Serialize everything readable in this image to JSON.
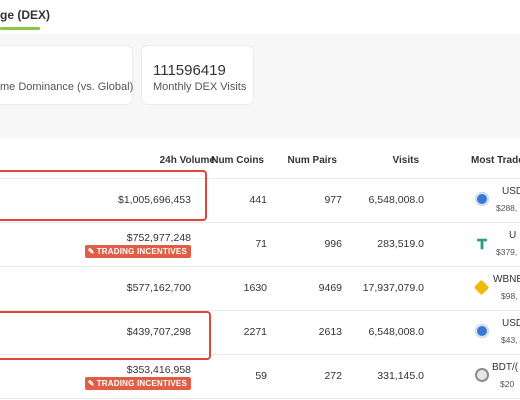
{
  "tab": {
    "label": "ge (DEX)"
  },
  "cards": [
    {
      "label": "me Dominance (vs. Global)"
    },
    {
      "value": "111596419",
      "label": "Monthly DEX Visits"
    }
  ],
  "table": {
    "headers": {
      "volume": "24h Volume",
      "coins": "Num Coins",
      "pairs": "Num Pairs",
      "visits": "Visits",
      "most": "Most Trade"
    },
    "rows": [
      {
        "volume": "$1,005,696,453",
        "coins": "441",
        "pairs": "977",
        "visits": "6,548,008.0",
        "coin_icon": "usdc-icon",
        "most_name": "USD",
        "most_sub": "$288,"
      },
      {
        "volume": "$752,977,248",
        "badge": "TRADING INCENTIVES",
        "coins": "71",
        "pairs": "996",
        "visits": "283,519.0",
        "coin_icon": "usdt-icon",
        "most_name": "U",
        "most_sub": "$379,"
      },
      {
        "volume": "$577,162,700",
        "coins": "1630",
        "pairs": "9469",
        "visits": "17,937,079.0",
        "coin_icon": "bnb-icon",
        "most_name": "WBNE",
        "most_sub": "$98,"
      },
      {
        "volume": "$439,707,298",
        "coins": "2271",
        "pairs": "2613",
        "visits": "6,548,008.0",
        "coin_icon": "usdc-icon",
        "most_name": "USD",
        "most_sub": "$43,"
      },
      {
        "volume": "$353,416,958",
        "badge": "TRADING INCENTIVES",
        "coins": "59",
        "pairs": "272",
        "visits": "331,145.0",
        "coin_icon": "token-icon",
        "most_name": "BDT/(",
        "most_sub": "$20"
      }
    ]
  },
  "colors": {
    "accent_green": "#8dc647",
    "badge_red": "#e05e45",
    "highlight_red": "#e0463a"
  }
}
